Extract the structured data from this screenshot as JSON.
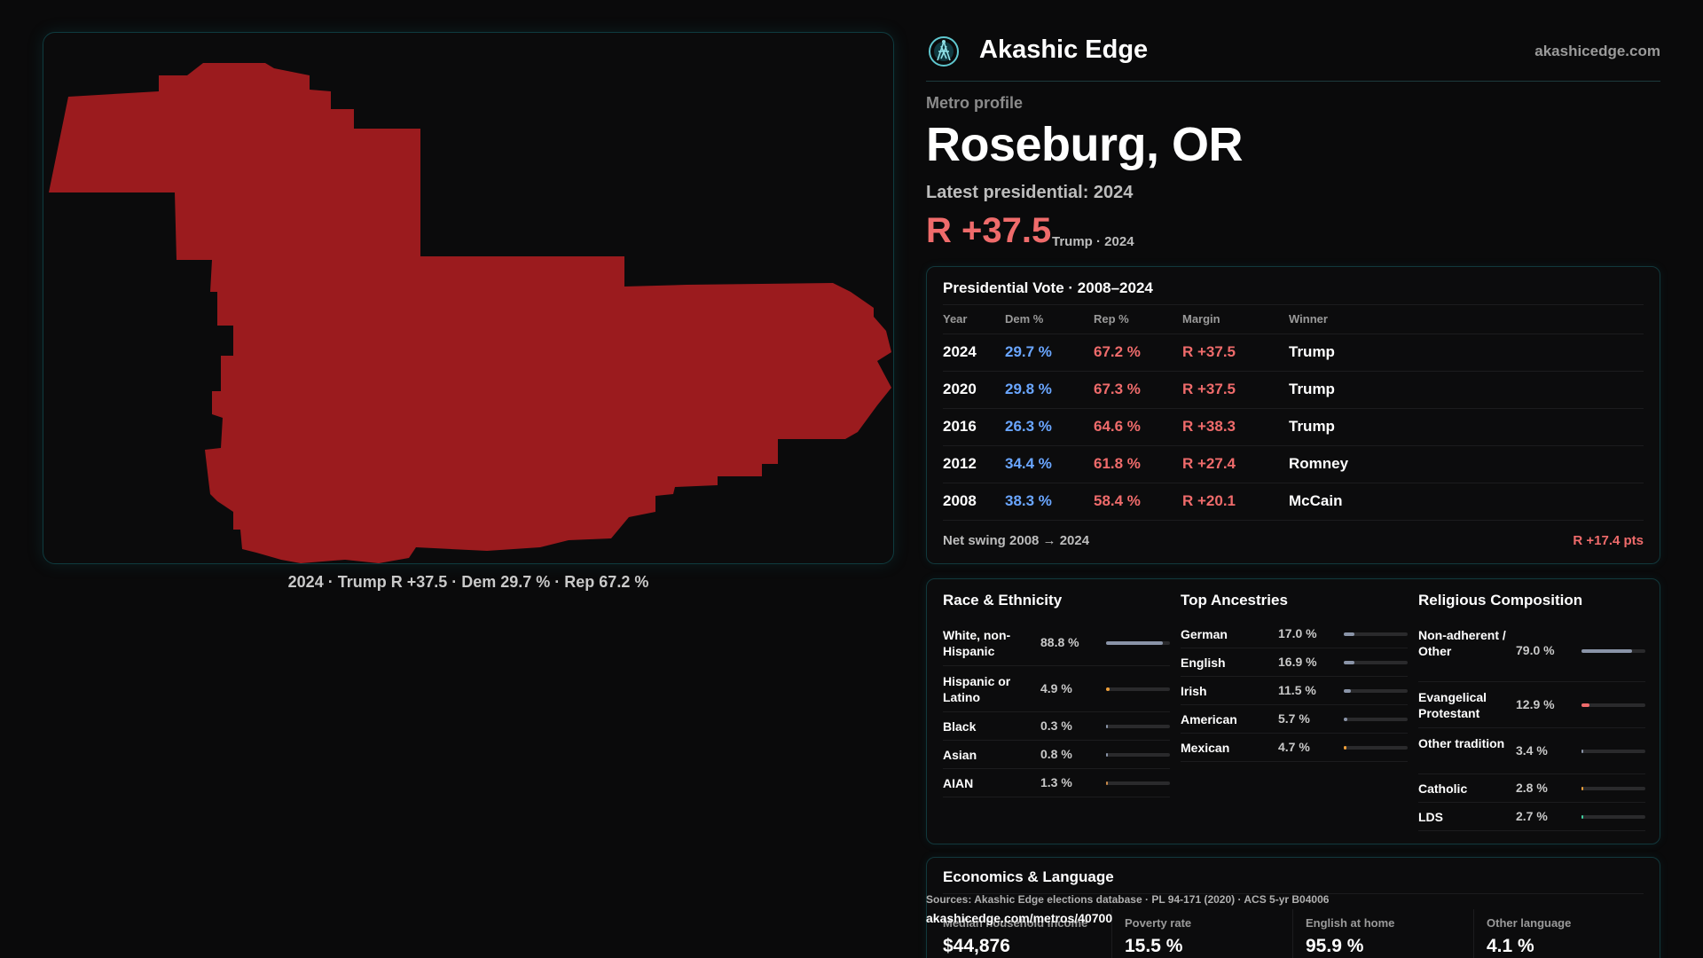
{
  "map": {
    "caption": "2024 · Trump R +37.5 · Dem 29.7 % · Rep 67.2 %",
    "fill_color": "#9b1b1e"
  },
  "header": {
    "logo_icon": "akashic-logo-icon",
    "brand": "Akashic Edge",
    "site": "akashicedge.com"
  },
  "profile": {
    "eyebrow": "Metro profile",
    "title": "Roseburg, OR",
    "latest": "Latest presidential: 2024",
    "margin": "R +37.5",
    "margin_sub": "Trump · 2024",
    "rep_color": "#ef6b6b",
    "dem_color": "#6aa6ff"
  },
  "vote": {
    "title": "Presidential Vote · 2008–2024",
    "headers": {
      "year": "Year",
      "dem": "Dem %",
      "rep": "Rep %",
      "margin": "Margin",
      "winner": "Winner"
    },
    "rows": [
      {
        "year": "2024",
        "dem": "29.7 %",
        "rep": "67.2 %",
        "margin": "R +37.5",
        "winner": "Trump"
      },
      {
        "year": "2020",
        "dem": "29.8 %",
        "rep": "67.3 %",
        "margin": "R +37.5",
        "winner": "Trump"
      },
      {
        "year": "2016",
        "dem": "26.3 %",
        "rep": "64.6 %",
        "margin": "R +38.3",
        "winner": "Trump"
      },
      {
        "year": "2012",
        "dem": "34.4 %",
        "rep": "61.8 %",
        "margin": "R +27.4",
        "winner": "Romney"
      },
      {
        "year": "2008",
        "dem": "38.3 %",
        "rep": "58.4 %",
        "margin": "R +20.1",
        "winner": "McCain"
      }
    ],
    "swing_label": "Net swing 2008 → 2024",
    "swing_value": "R +17.4 pts"
  },
  "race": {
    "title": "Race & Ethnicity",
    "items": [
      {
        "label": "White, non-Hispanic",
        "value": "88.8 %",
        "pct": 88.8,
        "color": "#8a94a8"
      },
      {
        "label": "Hispanic or Latino",
        "value": "4.9 %",
        "pct": 4.9,
        "color": "#f0a03a"
      },
      {
        "label": "Black",
        "value": "0.3 %",
        "pct": 0.3,
        "color": "#8a94a8"
      },
      {
        "label": "Asian",
        "value": "0.8 %",
        "pct": 0.8,
        "color": "#8a94a8"
      },
      {
        "label": "AIAN",
        "value": "1.3 %",
        "pct": 1.3,
        "color": "#c98a4a"
      }
    ]
  },
  "ancestry": {
    "title": "Top Ancestries",
    "items": [
      {
        "label": "German",
        "value": "17.0 %",
        "pct": 17.0,
        "color": "#8a94a8"
      },
      {
        "label": "English",
        "value": "16.9 %",
        "pct": 16.9,
        "color": "#8a94a8"
      },
      {
        "label": "Irish",
        "value": "11.5 %",
        "pct": 11.5,
        "color": "#8a94a8"
      },
      {
        "label": "American",
        "value": "5.7 %",
        "pct": 5.7,
        "color": "#8a94a8"
      },
      {
        "label": "Mexican",
        "value": "4.7 %",
        "pct": 4.7,
        "color": "#f0a03a"
      }
    ]
  },
  "religion": {
    "title": "Religious Composition",
    "items": [
      {
        "label": "Non-adherent / Other",
        "value": "79.0 %",
        "pct": 79.0,
        "color": "#8a94a8"
      },
      {
        "label": "Evangelical Protestant",
        "value": "12.9 %",
        "pct": 12.9,
        "color": "#ef6b6b"
      },
      {
        "label": "Other tradition",
        "value": "3.4 %",
        "pct": 3.4,
        "color": "#8a94a8"
      },
      {
        "label": "Catholic",
        "value": "2.8 %",
        "pct": 2.8,
        "color": "#f0a03a"
      },
      {
        "label": "LDS",
        "value": "2.7 %",
        "pct": 2.7,
        "color": "#3fd0a0"
      }
    ]
  },
  "economics": {
    "title": "Economics & Language",
    "cells": [
      {
        "label": "Median household income",
        "value": "$44,876"
      },
      {
        "label": "Poverty rate",
        "value": "15.5 %"
      },
      {
        "label": "English at home",
        "value": "95.9 %"
      },
      {
        "label": "Other language",
        "value": "4.1 %"
      }
    ]
  },
  "footer": {
    "sources": "Sources: Akashic Edge elections database · PL 94-171 (2020) · ACS 5-yr B04006",
    "url": "akashicedge.com/metros/40700"
  }
}
